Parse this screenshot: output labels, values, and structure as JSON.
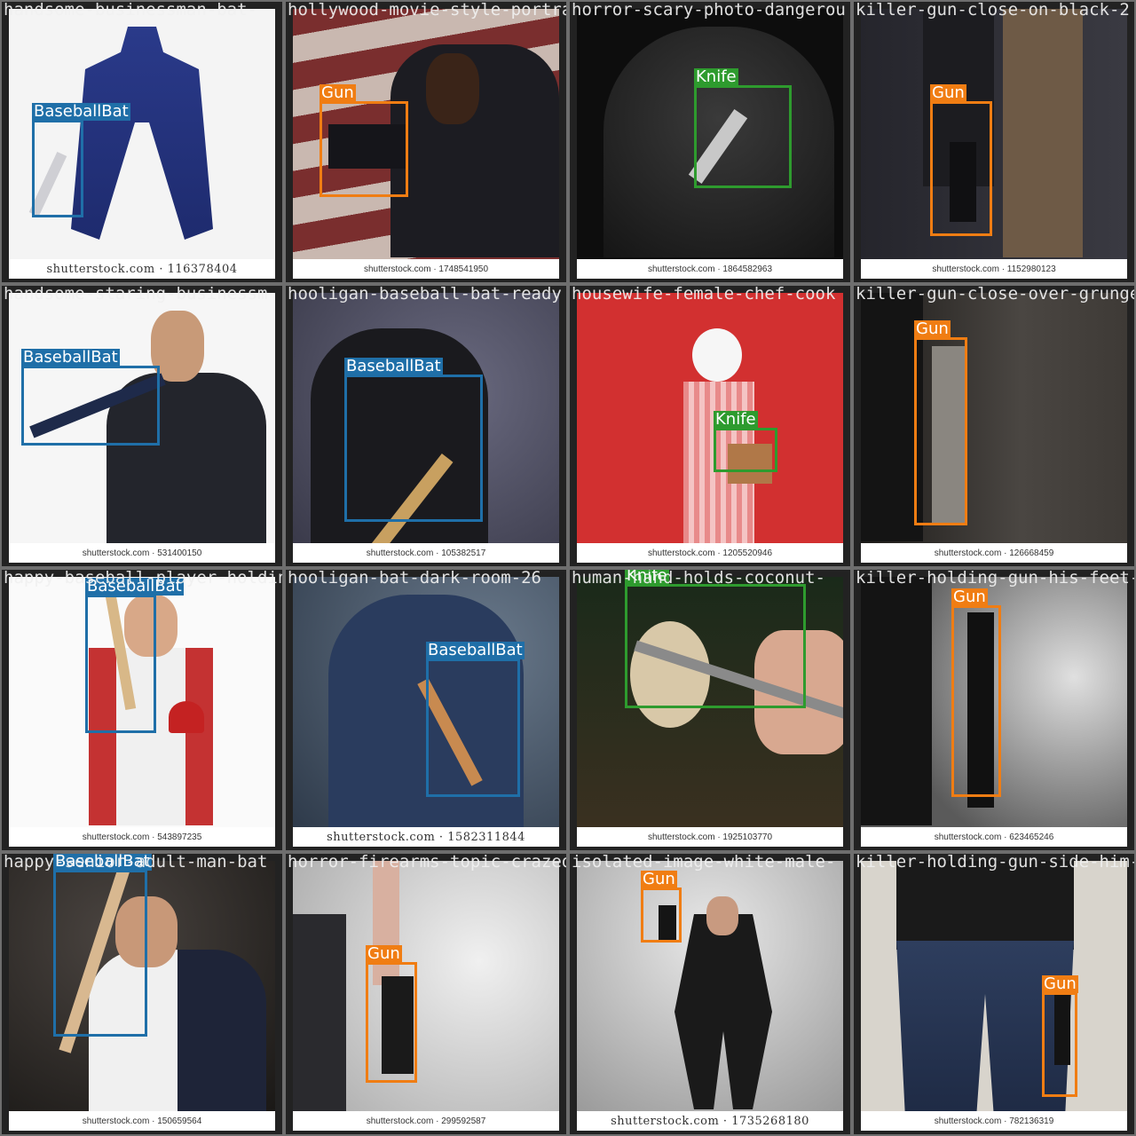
{
  "colors": {
    "BaseballBat": "#1f6fa8",
    "Gun": "#f07d13",
    "Knife": "#2e9b2e"
  },
  "tiles": [
    {
      "filename": "handsome-businessman-bat-",
      "caption": "shutterstock.com · 116378404",
      "bg": "#f4f4f4",
      "subject": "#2a3a8a",
      "labels": [
        "BaseballBat"
      ]
    },
    {
      "filename": "hollywood-movie-style-portra",
      "caption": "shutterstock.com · 1748541950",
      "bg": "#6a3a3a",
      "subject": "#1c1c22",
      "labels": [
        "Gun"
      ]
    },
    {
      "filename": "horror-scary-photo-dangerou",
      "caption": "shutterstock.com · 1864582963",
      "bg": "#0d0d0d",
      "subject": "#2a2a2a",
      "labels": [
        "Knife"
      ]
    },
    {
      "filename": "killer-gun-close-on-black-2",
      "caption": "shutterstock.com · 1152980123",
      "bg": "#2f2f36",
      "subject": "#3d3028",
      "labels": [
        "Gun"
      ]
    },
    {
      "filename": "handsome-staring-businessm",
      "caption": "shutterstock.com · 531400150",
      "bg": "#f6f6f6",
      "subject": "#23252c",
      "labels": [
        "BaseballBat"
      ]
    },
    {
      "filename": "hooligan-baseball-bat-ready",
      "caption": "shutterstock.com · 105382517",
      "bg": "#56566a",
      "subject": "#1a1a1e",
      "labels": [
        "BaseballBat"
      ]
    },
    {
      "filename": "housewife-female-chef-cook",
      "caption": "shutterstock.com · 1205520946",
      "bg": "#d23030",
      "subject": "#e88a8a",
      "labels": [
        "Knife"
      ]
    },
    {
      "filename": "killer-gun-close-over-grunge",
      "caption": "shutterstock.com · 126668459",
      "bg": "#3e3a36",
      "subject": "#1e1c1a",
      "labels": [
        "Gun"
      ]
    },
    {
      "filename": "happy-baseball-player-holdin",
      "caption": "shutterstock.com · 543897235",
      "bg": "#fafafa",
      "subject": "#c43232",
      "labels": [
        "BaseballBat"
      ]
    },
    {
      "filename": "hooligan-bat-dark-room-26",
      "caption": "shutterstock.com · 1582311844",
      "bg": "#3a4a5c",
      "subject": "#2a3c5e",
      "labels": [
        "BaseballBat"
      ]
    },
    {
      "filename": "human-hand-holds-coconut-",
      "caption": "shutterstock.com · 1925103770",
      "bg": "#1e2a1e",
      "subject": "#c8a890",
      "labels": [
        "Knife"
      ]
    },
    {
      "filename": "killer-holding-gun-his-feet-",
      "caption": "shutterstock.com · 623465246",
      "bg": "#6a6a6a",
      "subject": "#141414",
      "labels": [
        "Gun"
      ]
    },
    {
      "filename": "happy-senior-adult-man-bat",
      "caption": "shutterstock.com · 150659564",
      "bg": "#2a2624",
      "subject": "#1e2438",
      "labels": [
        "BaseballBat"
      ]
    },
    {
      "filename": "horror-firearms-topic-crazed",
      "caption": "shutterstock.com · 299592587",
      "bg": "#d8d8d8",
      "subject": "#2a2a2e",
      "labels": [
        "Gun"
      ]
    },
    {
      "filename": "isolated-image-white-male-",
      "caption": "shutterstock.com · 1735268180",
      "bg": "#c8c8c8",
      "subject": "#1a1a1a",
      "labels": [
        "Gun"
      ]
    },
    {
      "filename": "killer-holding-gun-side-him-",
      "caption": "shutterstock.com · 782136319",
      "bg": "#d8d4cc",
      "subject": "#26344e",
      "labels": [
        "Gun"
      ]
    }
  ]
}
